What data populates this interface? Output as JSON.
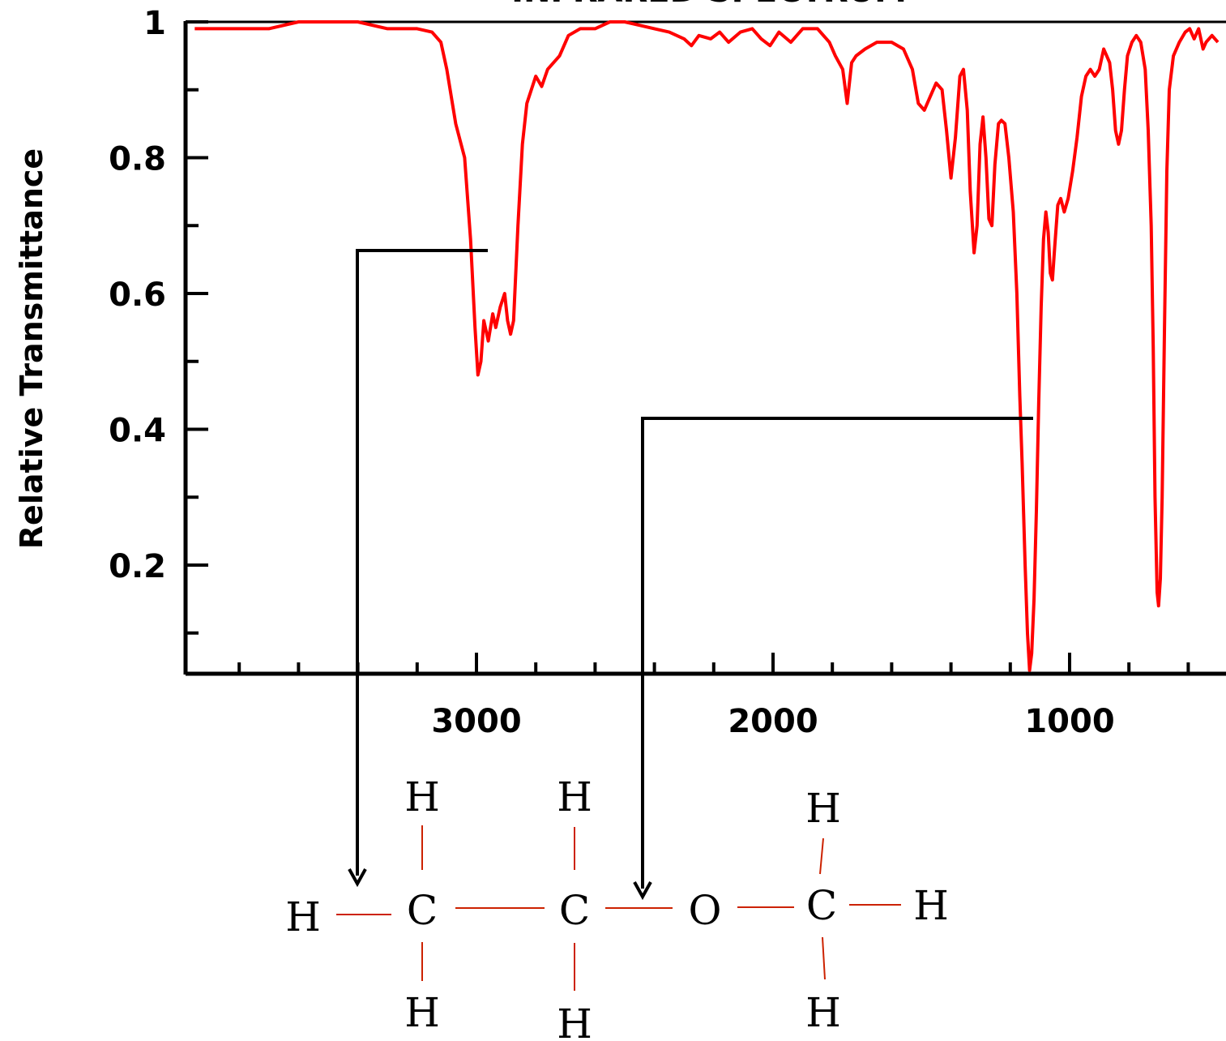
{
  "chart_data": {
    "type": "line",
    "title": "INFRARED SPECTRUM",
    "ylabel": "Relative Transmittance",
    "xlabel": "",
    "xlim": [
      3950,
      420
    ],
    "ylim": [
      0.04,
      1.0
    ],
    "x_reversed": true,
    "xticks": [
      {
        "value": 3000,
        "label": "3000"
      },
      {
        "value": 2000,
        "label": "2000"
      },
      {
        "value": 1000,
        "label": "1000"
      }
    ],
    "yticks": [
      {
        "value": 1.0,
        "label": "1"
      },
      {
        "value": 0.8,
        "label": "0.8"
      },
      {
        "value": 0.6,
        "label": "0.6"
      },
      {
        "value": 0.4,
        "label": "0.4"
      },
      {
        "value": 0.2,
        "label": "0.2"
      }
    ],
    "series": [
      {
        "color": "#ff0000",
        "points": [
          [
            3950,
            0.99
          ],
          [
            3800,
            0.99
          ],
          [
            3700,
            0.99
          ],
          [
            3600,
            1.0
          ],
          [
            3500,
            1.0
          ],
          [
            3400,
            1.0
          ],
          [
            3300,
            0.99
          ],
          [
            3200,
            0.99
          ],
          [
            3150,
            0.985
          ],
          [
            3120,
            0.97
          ],
          [
            3100,
            0.93
          ],
          [
            3070,
            0.85
          ],
          [
            3040,
            0.8
          ],
          [
            3020,
            0.68
          ],
          [
            3005,
            0.55
          ],
          [
            2995,
            0.48
          ],
          [
            2985,
            0.5
          ],
          [
            2975,
            0.56
          ],
          [
            2960,
            0.53
          ],
          [
            2945,
            0.57
          ],
          [
            2935,
            0.55
          ],
          [
            2920,
            0.58
          ],
          [
            2905,
            0.6
          ],
          [
            2895,
            0.56
          ],
          [
            2885,
            0.54
          ],
          [
            2875,
            0.56
          ],
          [
            2860,
            0.7
          ],
          [
            2845,
            0.82
          ],
          [
            2830,
            0.88
          ],
          [
            2815,
            0.9
          ],
          [
            2800,
            0.92
          ],
          [
            2780,
            0.905
          ],
          [
            2760,
            0.93
          ],
          [
            2720,
            0.95
          ],
          [
            2690,
            0.98
          ],
          [
            2650,
            0.99
          ],
          [
            2600,
            0.99
          ],
          [
            2550,
            1.0
          ],
          [
            2500,
            1.0
          ],
          [
            2450,
            0.995
          ],
          [
            2400,
            0.99
          ],
          [
            2350,
            0.985
          ],
          [
            2300,
            0.975
          ],
          [
            2275,
            0.965
          ],
          [
            2250,
            0.98
          ],
          [
            2210,
            0.975
          ],
          [
            2180,
            0.985
          ],
          [
            2150,
            0.97
          ],
          [
            2110,
            0.985
          ],
          [
            2070,
            0.99
          ],
          [
            2040,
            0.975
          ],
          [
            2010,
            0.965
          ],
          [
            1980,
            0.985
          ],
          [
            1940,
            0.97
          ],
          [
            1900,
            0.99
          ],
          [
            1850,
            0.99
          ],
          [
            1810,
            0.97
          ],
          [
            1790,
            0.95
          ],
          [
            1765,
            0.93
          ],
          [
            1750,
            0.88
          ],
          [
            1735,
            0.94
          ],
          [
            1720,
            0.95
          ],
          [
            1690,
            0.96
          ],
          [
            1650,
            0.97
          ],
          [
            1600,
            0.97
          ],
          [
            1560,
            0.96
          ],
          [
            1530,
            0.93
          ],
          [
            1510,
            0.88
          ],
          [
            1490,
            0.87
          ],
          [
            1470,
            0.89
          ],
          [
            1450,
            0.91
          ],
          [
            1430,
            0.9
          ],
          [
            1415,
            0.84
          ],
          [
            1400,
            0.77
          ],
          [
            1385,
            0.83
          ],
          [
            1370,
            0.92
          ],
          [
            1358,
            0.93
          ],
          [
            1345,
            0.87
          ],
          [
            1335,
            0.75
          ],
          [
            1322,
            0.66
          ],
          [
            1312,
            0.7
          ],
          [
            1302,
            0.82
          ],
          [
            1292,
            0.86
          ],
          [
            1282,
            0.8
          ],
          [
            1272,
            0.71
          ],
          [
            1262,
            0.7
          ],
          [
            1252,
            0.79
          ],
          [
            1240,
            0.85
          ],
          [
            1230,
            0.855
          ],
          [
            1218,
            0.85
          ],
          [
            1205,
            0.8
          ],
          [
            1190,
            0.72
          ],
          [
            1178,
            0.6
          ],
          [
            1168,
            0.45
          ],
          [
            1160,
            0.35
          ],
          [
            1150,
            0.2
          ],
          [
            1142,
            0.1
          ],
          [
            1135,
            0.045
          ],
          [
            1128,
            0.07
          ],
          [
            1120,
            0.15
          ],
          [
            1112,
            0.28
          ],
          [
            1104,
            0.44
          ],
          [
            1096,
            0.58
          ],
          [
            1088,
            0.68
          ],
          [
            1080,
            0.72
          ],
          [
            1072,
            0.69
          ],
          [
            1065,
            0.63
          ],
          [
            1058,
            0.62
          ],
          [
            1050,
            0.67
          ],
          [
            1040,
            0.73
          ],
          [
            1030,
            0.74
          ],
          [
            1018,
            0.72
          ],
          [
            1005,
            0.74
          ],
          [
            990,
            0.78
          ],
          [
            975,
            0.83
          ],
          [
            960,
            0.89
          ],
          [
            945,
            0.92
          ],
          [
            930,
            0.93
          ],
          [
            915,
            0.92
          ],
          [
            900,
            0.93
          ],
          [
            885,
            0.96
          ],
          [
            875,
            0.95
          ],
          [
            865,
            0.94
          ],
          [
            855,
            0.9
          ],
          [
            845,
            0.84
          ],
          [
            835,
            0.82
          ],
          [
            825,
            0.84
          ],
          [
            815,
            0.9
          ],
          [
            805,
            0.95
          ],
          [
            790,
            0.97
          ],
          [
            775,
            0.98
          ],
          [
            760,
            0.97
          ],
          [
            745,
            0.93
          ],
          [
            735,
            0.84
          ],
          [
            725,
            0.7
          ],
          [
            718,
            0.52
          ],
          [
            712,
            0.3
          ],
          [
            705,
            0.16
          ],
          [
            700,
            0.14
          ],
          [
            694,
            0.18
          ],
          [
            688,
            0.3
          ],
          [
            680,
            0.55
          ],
          [
            672,
            0.78
          ],
          [
            664,
            0.9
          ],
          [
            650,
            0.95
          ],
          [
            630,
            0.97
          ],
          [
            610,
            0.985
          ],
          [
            595,
            0.99
          ],
          [
            580,
            0.975
          ],
          [
            565,
            0.99
          ],
          [
            550,
            0.96
          ],
          [
            540,
            0.97
          ],
          [
            520,
            0.98
          ],
          [
            500,
            0.97
          ]
        ]
      }
    ]
  },
  "annotations": {
    "molecule_atoms": [
      "H",
      "C",
      "C",
      "O",
      "C",
      "H",
      "H",
      "H",
      "H",
      "H",
      "H",
      "H"
    ]
  }
}
